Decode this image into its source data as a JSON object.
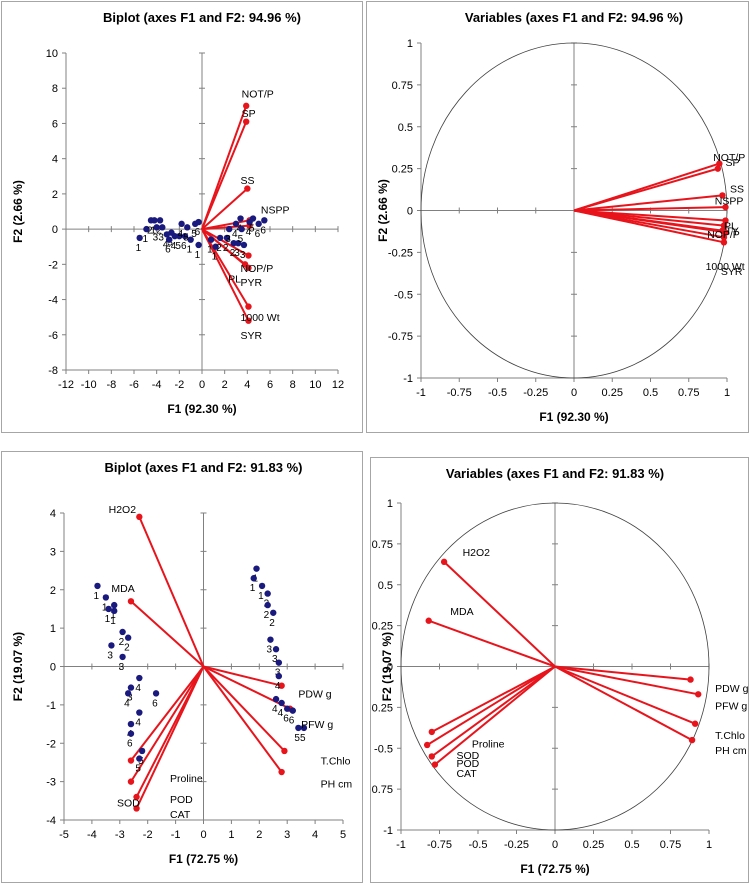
{
  "chart_data": [
    {
      "id": "p1",
      "type": "scatter",
      "title": "Biplot (axes F1 and F2: 94.96 %)",
      "xlabel": "F1 (92.30 %)",
      "ylabel": "F2 (2.66 %)",
      "xlim": [
        -12,
        12
      ],
      "ylim": [
        -8,
        10
      ],
      "xstep": 2,
      "ystep": 2,
      "xticks": [
        "-12",
        "-10",
        "-8",
        "-6",
        "-4",
        "-2",
        "0",
        "2",
        "4",
        "6",
        "8",
        "10",
        "12"
      ],
      "yticks": [
        "-8",
        "-6",
        "-4",
        "-2",
        "0",
        "2",
        "4",
        "6",
        "8",
        "10"
      ],
      "observations": [
        {
          "x": -5.5,
          "y": -0.5,
          "label": "1"
        },
        {
          "x": -4.9,
          "y": 0,
          "label": "1"
        },
        {
          "x": -4.5,
          "y": 0.5,
          "label": "2"
        },
        {
          "x": -4.2,
          "y": 0.5,
          "label": "1"
        },
        {
          "x": -3.7,
          "y": 0.5,
          "label": "2"
        },
        {
          "x": -4.0,
          "y": 0.1,
          "label": "3"
        },
        {
          "x": -3.5,
          "y": 0.1,
          "label": "3"
        },
        {
          "x": -2.7,
          "y": -0.2,
          "label": "3"
        },
        {
          "x": -3.1,
          "y": -0.3,
          "label": "4"
        },
        {
          "x": -2.4,
          "y": -0.4,
          "label": "4"
        },
        {
          "x": -2.9,
          "y": -0.6,
          "label": "6"
        },
        {
          "x": -2.0,
          "y": -0.4,
          "label": "5"
        },
        {
          "x": -1.5,
          "y": -0.4,
          "label": "6"
        },
        {
          "x": -1.0,
          "y": -0.6,
          "label": "1"
        },
        {
          "x": -1.8,
          "y": 0.3,
          "label": "4"
        },
        {
          "x": -1.3,
          "y": 0.1,
          "label": "5"
        },
        {
          "x": -0.6,
          "y": 0.3,
          "label": "5"
        },
        {
          "x": -0.3,
          "y": 0.4,
          "label": "6"
        },
        {
          "x": -0.3,
          "y": -0.9,
          "label": "1"
        },
        {
          "x": 0.8,
          "y": -0.6,
          "label": "1"
        },
        {
          "x": 1.2,
          "y": -1.0,
          "label": "1"
        },
        {
          "x": 1.6,
          "y": -0.5,
          "label": "2"
        },
        {
          "x": 2.2,
          "y": -0.5,
          "label": "2"
        },
        {
          "x": 2.8,
          "y": -0.8,
          "label": "2"
        },
        {
          "x": 3.2,
          "y": -0.8,
          "label": "3"
        },
        {
          "x": 3.7,
          "y": -0.9,
          "label": "3"
        },
        {
          "x": 2.4,
          "y": 0,
          "label": "3"
        },
        {
          "x": 3.0,
          "y": 0.3,
          "label": "4"
        },
        {
          "x": 3.4,
          "y": 0.6,
          "label": "4"
        },
        {
          "x": 4.2,
          "y": 0.4,
          "label": "4"
        },
        {
          "x": 3.5,
          "y": 0,
          "label": "5"
        },
        {
          "x": 4.5,
          "y": 0.6,
          "label": "5"
        },
        {
          "x": 5.0,
          "y": 0.3,
          "label": "6"
        },
        {
          "x": 5.5,
          "y": 0.5,
          "label": "6"
        }
      ],
      "variables": [
        {
          "name": "NOT/P",
          "x": 3.9,
          "y": 7.0
        },
        {
          "name": "SP",
          "x": 3.9,
          "y": 6.1
        },
        {
          "name": "SS",
          "x": 4.0,
          "y": 2.3
        },
        {
          "name": "NSPP",
          "x": 4.2,
          "y": 0.5
        },
        {
          "name": "TY",
          "x": 4.2,
          "y": 0.2
        },
        {
          "name": "NOP/P",
          "x": 4.1,
          "y": -1.5
        },
        {
          "name": "PL",
          "x": 3.8,
          "y": -2.0
        },
        {
          "name": "PYR",
          "x": 4.1,
          "y": -2.2
        },
        {
          "name": "1000 Wt",
          "x": 4.1,
          "y": -4.4
        },
        {
          "name": "SYR",
          "x": 4.1,
          "y": -5.2
        }
      ],
      "texts": [
        {
          "t": "NOT/P",
          "x": 3.5,
          "y": 7.7
        },
        {
          "t": "SP",
          "x": 3.5,
          "y": 6.6
        },
        {
          "t": "SS",
          "x": 3.4,
          "y": 2.8
        },
        {
          "t": "NSPP",
          "x": 5.2,
          "y": 1.1
        },
        {
          "t": "NOP/P",
          "x": 3.4,
          "y": -2.2
        },
        {
          "t": "PL",
          "x": 2.3,
          "y": -2.8
        },
        {
          "t": "PYR",
          "x": 3.4,
          "y": -3.0
        },
        {
          "t": "1000 Wt",
          "x": 3.4,
          "y": -5.0
        },
        {
          "t": "SYR",
          "x": 3.4,
          "y": -6.0
        }
      ]
    },
    {
      "id": "p2",
      "type": "scatter",
      "title": "Variables (axes F1 and F2: 94.96 %)",
      "xlabel": "F1 (92.30 %)",
      "ylabel": "F2 (2.66 %)",
      "xlim": [
        -1,
        1
      ],
      "ylim": [
        -1,
        1
      ],
      "xstep": 0.25,
      "ystep": 0.25,
      "xticks": [
        "-1",
        "-0.75",
        "-0.5",
        "-0.25",
        "0",
        "0.25",
        "0.5",
        "0.75",
        "1"
      ],
      "yticks": [
        "-1",
        "-0.75",
        "-0.5",
        "-0.25",
        "0",
        "0.25",
        "0.5",
        "0.75",
        "1"
      ],
      "circle": true,
      "observations": [],
      "variables": [
        {
          "name": "NOT/P",
          "x": 0.95,
          "y": 0.28
        },
        {
          "name": "SP",
          "x": 0.94,
          "y": 0.25
        },
        {
          "name": "SS",
          "x": 0.97,
          "y": 0.09
        },
        {
          "name": "NSPP",
          "x": 0.99,
          "y": 0.02
        },
        {
          "name": "TY",
          "x": 0.99,
          "y": -0.06
        },
        {
          "name": "NOP/P",
          "x": 0.98,
          "y": -0.09
        },
        {
          "name": "PL",
          "x": 0.97,
          "y": -0.12
        },
        {
          "name": "PYR",
          "x": 0.99,
          "y": -0.13
        },
        {
          "name": "1000 Wt",
          "x": 0.98,
          "y": -0.16
        },
        {
          "name": "SYR",
          "x": 0.98,
          "y": -0.19
        }
      ],
      "texts": [
        {
          "t": "NOT/P",
          "x": 0.91,
          "y": 0.32
        },
        {
          "t": "SP",
          "x": 0.99,
          "y": 0.29
        },
        {
          "t": "SS",
          "x": 1.02,
          "y": 0.13
        },
        {
          "t": "NSPP",
          "x": 0.92,
          "y": 0.06
        },
        {
          "t": "PL",
          "x": 0.98,
          "y": -0.09
        },
        {
          "t": "NOP/P",
          "x": 0.87,
          "y": -0.14
        },
        {
          "t": "TY",
          "x": 0.99,
          "y": -0.12
        },
        {
          "t": "1000 Wt",
          "x": 0.86,
          "y": -0.33
        },
        {
          "t": "SYR",
          "x": 0.96,
          "y": -0.36
        }
      ]
    },
    {
      "id": "p3",
      "type": "scatter",
      "title": "Biplot (axes F1 and F2: 91.83 %)",
      "xlabel": "F1 (72.75 %)",
      "ylabel": "F2 (19.07 %)",
      "xlim": [
        -5,
        5
      ],
      "ylim": [
        -4,
        4
      ],
      "xstep": 1,
      "ystep": 1,
      "xticks": [
        "-5",
        "-4",
        "-3",
        "-2",
        "-1",
        "0",
        "1",
        "2",
        "3",
        "4",
        "5"
      ],
      "yticks": [
        "-4",
        "-3",
        "-2",
        "-1",
        "0",
        "1",
        "2",
        "3",
        "4"
      ],
      "observations": [
        {
          "x": -3.8,
          "y": 2.1,
          "label": "1"
        },
        {
          "x": -3.5,
          "y": 1.8,
          "label": "1"
        },
        {
          "x": -3.2,
          "y": 1.6,
          "label": "1"
        },
        {
          "x": -3.4,
          "y": 1.5,
          "label": "1"
        },
        {
          "x": -3.2,
          "y": 1.45,
          "label": "1"
        },
        {
          "x": -2.9,
          "y": 0.9,
          "label": "2"
        },
        {
          "x": -2.7,
          "y": 0.75,
          "label": "2"
        },
        {
          "x": -3.3,
          "y": 0.55,
          "label": "3"
        },
        {
          "x": -2.9,
          "y": 0.25,
          "label": "3"
        },
        {
          "x": -2.6,
          "y": -0.55,
          "label": "3"
        },
        {
          "x": -2.7,
          "y": -0.7,
          "label": "4"
        },
        {
          "x": -2.3,
          "y": -0.3,
          "label": "4"
        },
        {
          "x": -1.7,
          "y": -0.7,
          "label": "6"
        },
        {
          "x": -2.3,
          "y": -1.2,
          "label": "4"
        },
        {
          "x": -2.6,
          "y": -1.5,
          "label": "4"
        },
        {
          "x": -2.6,
          "y": -1.75,
          "label": "6"
        },
        {
          "x": -2.2,
          "y": -2.2,
          "label": "5"
        },
        {
          "x": -2.3,
          "y": -2.4,
          "label": "5"
        },
        {
          "x": 1.9,
          "y": 2.55,
          "label": "1"
        },
        {
          "x": 1.8,
          "y": 2.3,
          "label": "1"
        },
        {
          "x": 2.1,
          "y": 2.1,
          "label": "1"
        },
        {
          "x": 2.3,
          "y": 1.9,
          "label": "2"
        },
        {
          "x": 2.3,
          "y": 1.6,
          "label": "2"
        },
        {
          "x": 2.5,
          "y": 1.4,
          "label": "2"
        },
        {
          "x": 2.4,
          "y": 0.7,
          "label": "3"
        },
        {
          "x": 2.6,
          "y": 0.45,
          "label": "3"
        },
        {
          "x": 2.7,
          "y": 0.1,
          "label": "3"
        },
        {
          "x": 2.7,
          "y": -0.25,
          "label": "4"
        },
        {
          "x": 2.6,
          "y": -0.85,
          "label": "4"
        },
        {
          "x": 2.8,
          "y": -0.95,
          "label": "4"
        },
        {
          "x": 3.0,
          "y": -1.1,
          "label": "6"
        },
        {
          "x": 3.2,
          "y": -1.15,
          "label": "6"
        },
        {
          "x": 3.4,
          "y": -1.6,
          "label": "5"
        },
        {
          "x": 3.6,
          "y": -1.6,
          "label": "5"
        }
      ],
      "variables": [
        {
          "name": "H2O2",
          "x": -2.3,
          "y": 3.9
        },
        {
          "name": "MDA",
          "x": -2.6,
          "y": 1.7
        },
        {
          "name": "PDW g",
          "x": 2.8,
          "y": -0.5
        },
        {
          "name": "PFW g",
          "x": 3.1,
          "y": -1.1
        },
        {
          "name": "T.Chlo",
          "x": 2.9,
          "y": -2.2
        },
        {
          "name": "PH cm",
          "x": 2.8,
          "y": -2.75
        },
        {
          "name": "Proline",
          "x": -2.6,
          "y": -2.45
        },
        {
          "name": "SOD",
          "x": -2.6,
          "y": -3.0
        },
        {
          "name": "POD",
          "x": -2.4,
          "y": -3.4
        },
        {
          "name": "CAT",
          "x": -2.4,
          "y": -3.7
        }
      ],
      "texts": [
        {
          "t": "H2O2",
          "x": -3.4,
          "y": 4.1
        },
        {
          "t": "MDA",
          "x": -3.3,
          "y": 2.05
        },
        {
          "t": "PDW g",
          "x": 3.4,
          "y": -0.7
        },
        {
          "t": "PFW g",
          "x": 3.5,
          "y": -1.5
        },
        {
          "t": "T.Chlo",
          "x": 4.2,
          "y": -2.45
        },
        {
          "t": "PH cm",
          "x": 4.2,
          "y": -3.05
        },
        {
          "t": "Proline",
          "x": -1.2,
          "y": -2.9
        },
        {
          "t": "SOD",
          "x": -3.1,
          "y": -3.55
        },
        {
          "t": "POD",
          "x": -1.2,
          "y": -3.45
        },
        {
          "t": "CAT",
          "x": -1.2,
          "y": -3.85
        }
      ]
    },
    {
      "id": "p4",
      "type": "scatter",
      "title": "Variables (axes F1 and F2: 91.83 %)",
      "xlabel": "F1 (72.75 %)",
      "ylabel": "F2 (19.07 %)",
      "xlim": [
        -1,
        1
      ],
      "ylim": [
        -1,
        1
      ],
      "xstep": 0.25,
      "ystep": 0.25,
      "xticks": [
        "-1",
        "-0.75",
        "-0.5",
        "-0.25",
        "0",
        "0.25",
        "0.5",
        "0.75",
        "1"
      ],
      "yticks": [
        "-1",
        "-0.75",
        "-0.5",
        "-0.25",
        "0",
        "0.25",
        "0.5",
        "0.75",
        "1"
      ],
      "circle": true,
      "observations": [],
      "variables": [
        {
          "name": "H2O2",
          "x": -0.72,
          "y": 0.64
        },
        {
          "name": "MDA",
          "x": -0.82,
          "y": 0.28
        },
        {
          "name": "PDW g",
          "x": 0.88,
          "y": -0.08
        },
        {
          "name": "PFW g",
          "x": 0.93,
          "y": -0.17
        },
        {
          "name": "T.Chlo",
          "x": 0.91,
          "y": -0.35
        },
        {
          "name": "PH cm",
          "x": 0.89,
          "y": -0.45
        },
        {
          "name": "Proline",
          "x": -0.8,
          "y": -0.4
        },
        {
          "name": "SOD",
          "x": -0.83,
          "y": -0.48
        },
        {
          "name": "POD",
          "x": -0.8,
          "y": -0.55
        },
        {
          "name": "CAT",
          "x": -0.78,
          "y": -0.6
        }
      ],
      "texts": [
        {
          "t": "H2O2",
          "x": -0.6,
          "y": 0.7
        },
        {
          "t": "MDA",
          "x": -0.68,
          "y": 0.34
        },
        {
          "t": "PDW g",
          "x": 1.04,
          "y": -0.13
        },
        {
          "t": "PFW g",
          "x": 1.04,
          "y": -0.24
        },
        {
          "t": "T.Chlo",
          "x": 1.04,
          "y": -0.42
        },
        {
          "t": "PH cm",
          "x": 1.04,
          "y": -0.51
        },
        {
          "t": "Proline",
          "x": -0.54,
          "y": -0.47
        },
        {
          "t": "SOD",
          "x": -0.64,
          "y": -0.54
        },
        {
          "t": "POD",
          "x": -0.64,
          "y": -0.59
        },
        {
          "t": "CAT",
          "x": -0.64,
          "y": -0.65
        }
      ]
    }
  ]
}
